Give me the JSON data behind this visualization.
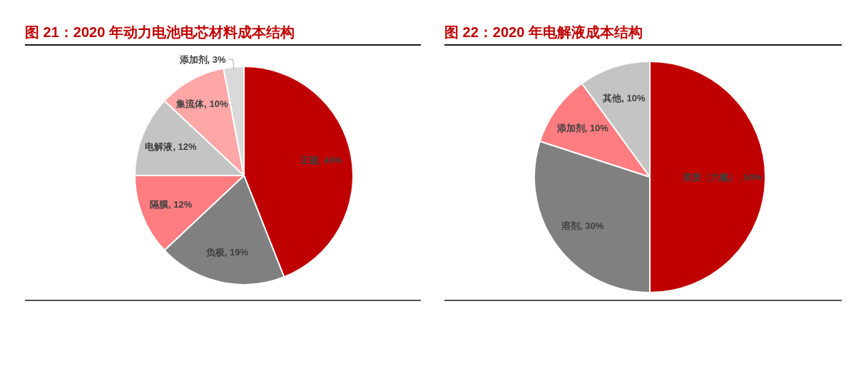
{
  "chart_data": [
    {
      "type": "pie",
      "title": "图 21：2020 年动力电池电芯材料成本结构",
      "categories": [
        "正极",
        "负极",
        "隔膜",
        "电解液",
        "集流体",
        "添加剂"
      ],
      "values": [
        44,
        19,
        12,
        12,
        10,
        3
      ],
      "value_labels": [
        "44%",
        "19%",
        "12%",
        "12%",
        "10%",
        "3%"
      ],
      "colors": [
        "#c00000",
        "#808080",
        "#ff7c80",
        "#c4c4c4",
        "#ffa6a6",
        "#d9d9d9"
      ]
    },
    {
      "type": "pie",
      "title": "图 22：2020 年电解液成本结构",
      "categories": [
        "溶质（六氟）",
        "溶剂",
        "添加剂",
        "其他"
      ],
      "values": [
        50,
        30,
        10,
        10
      ],
      "value_labels": [
        "50%",
        "30%",
        "10%",
        "10%"
      ],
      "colors": [
        "#c00000",
        "#808080",
        "#ff7c80",
        "#c4c4c4"
      ]
    }
  ]
}
